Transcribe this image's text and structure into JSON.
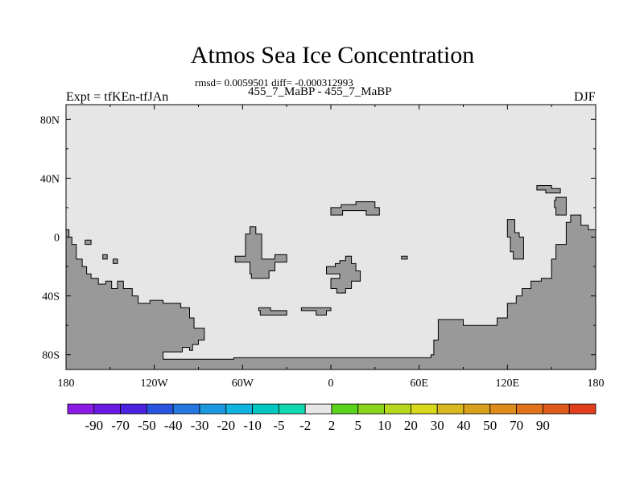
{
  "title": "Atmos Sea Ice Concentration",
  "stats": "rmsd= 0.0059501 diff= -0.000312993",
  "subtitle": "455_7_MaBP - 455_7_MaBP",
  "left_label": "Expt = tfKEn-tfJAn",
  "right_label": "DJF",
  "colors": {
    "ocean": "#e6e6e6",
    "land": "#999999"
  },
  "map": {
    "x_ticks": [
      {
        "lon": -180,
        "label": "180"
      },
      {
        "lon": -120,
        "label": "120W"
      },
      {
        "lon": -60,
        "label": "60W"
      },
      {
        "lon": 0,
        "label": "0"
      },
      {
        "lon": 60,
        "label": "60E"
      },
      {
        "lon": 120,
        "label": "120E"
      },
      {
        "lon": 180,
        "label": "180"
      }
    ],
    "y_ticks": [
      {
        "lat": 80,
        "label": "80N"
      },
      {
        "lat": 40,
        "label": "40N"
      },
      {
        "lat": 0,
        "label": "0"
      },
      {
        "lat": -40,
        "label": "40S"
      },
      {
        "lat": -80,
        "label": "80S"
      }
    ],
    "lon_range": [
      -180,
      180
    ],
    "lat_range": [
      -90,
      90
    ],
    "land_regions": [
      {
        "name": "west-land-mass",
        "points": [
          [
            -180,
            -90
          ],
          [
            -180,
            5
          ],
          [
            -178,
            5
          ],
          [
            -178,
            0
          ],
          [
            -176,
            0
          ],
          [
            -176,
            -5
          ],
          [
            -173,
            -5
          ],
          [
            -173,
            -15
          ],
          [
            -169,
            -15
          ],
          [
            -169,
            -20
          ],
          [
            -166,
            -20
          ],
          [
            -166,
            -25
          ],
          [
            -163,
            -25
          ],
          [
            -163,
            -28
          ],
          [
            -158,
            -28
          ],
          [
            -158,
            -32
          ],
          [
            -153,
            -32
          ],
          [
            -153,
            -30
          ],
          [
            -149,
            -30
          ],
          [
            -149,
            -35
          ],
          [
            -145,
            -35
          ],
          [
            -145,
            -30
          ],
          [
            -141,
            -30
          ],
          [
            -141,
            -35
          ],
          [
            -135,
            -35
          ],
          [
            -135,
            -40
          ],
          [
            -131,
            -40
          ],
          [
            -131,
            -45
          ],
          [
            -123,
            -45
          ],
          [
            -123,
            -43
          ],
          [
            -114,
            -43
          ],
          [
            -114,
            -45
          ],
          [
            -102,
            -45
          ],
          [
            -102,
            -48
          ],
          [
            -96,
            -48
          ],
          [
            -96,
            -55
          ],
          [
            -93,
            -55
          ],
          [
            -93,
            -62
          ],
          [
            -86,
            -62
          ],
          [
            -86,
            -70
          ],
          [
            -90,
            -70
          ],
          [
            -90,
            -73
          ],
          [
            -94,
            -73
          ],
          [
            -94,
            -77
          ],
          [
            -96,
            -77
          ],
          [
            -96,
            -75
          ],
          [
            -101,
            -75
          ],
          [
            -101,
            -78
          ],
          [
            -114,
            -78
          ],
          [
            -114,
            -83
          ],
          [
            -66,
            -83
          ],
          [
            -66,
            -82
          ],
          [
            68,
            -82
          ],
          [
            68,
            -80
          ],
          [
            70,
            -80
          ],
          [
            70,
            -70
          ],
          [
            73,
            -70
          ],
          [
            73,
            -56
          ],
          [
            90,
            -56
          ],
          [
            90,
            -60
          ],
          [
            113,
            -60
          ],
          [
            113,
            -55
          ],
          [
            120,
            -55
          ],
          [
            120,
            -45
          ],
          [
            126,
            -45
          ],
          [
            126,
            -40
          ],
          [
            130,
            -40
          ],
          [
            130,
            -35
          ],
          [
            136,
            -35
          ],
          [
            136,
            -30
          ],
          [
            143,
            -30
          ],
          [
            143,
            -28
          ],
          [
            150,
            -28
          ],
          [
            150,
            -15
          ],
          [
            153,
            -15
          ],
          [
            153,
            -5
          ],
          [
            160,
            -5
          ],
          [
            160,
            10
          ],
          [
            163,
            10
          ],
          [
            163,
            15
          ],
          [
            170,
            15
          ],
          [
            170,
            8
          ],
          [
            175,
            8
          ],
          [
            175,
            5
          ],
          [
            180,
            5
          ],
          [
            180,
            -90
          ]
        ]
      },
      {
        "name": "island-1",
        "points": [
          [
            -167,
            -2
          ],
          [
            -163,
            -2
          ],
          [
            -163,
            -5
          ],
          [
            -167,
            -5
          ]
        ]
      },
      {
        "name": "island-2",
        "points": [
          [
            -155,
            -12
          ],
          [
            -152,
            -12
          ],
          [
            -152,
            -15
          ],
          [
            -155,
            -15
          ]
        ]
      },
      {
        "name": "island-3",
        "points": [
          [
            -148,
            -15
          ],
          [
            -145,
            -15
          ],
          [
            -145,
            -18
          ],
          [
            -148,
            -18
          ]
        ]
      },
      {
        "name": "central-landmass-a",
        "points": [
          [
            -58,
            2
          ],
          [
            -55,
            2
          ],
          [
            -55,
            7
          ],
          [
            -51,
            7
          ],
          [
            -51,
            2
          ],
          [
            -47,
            2
          ],
          [
            -47,
            -15
          ],
          [
            -38,
            -15
          ],
          [
            -38,
            -12
          ],
          [
            -30,
            -12
          ],
          [
            -30,
            -17
          ],
          [
            -38,
            -17
          ],
          [
            -38,
            -23
          ],
          [
            -42,
            -23
          ],
          [
            -42,
            -28
          ],
          [
            -54,
            -28
          ],
          [
            -54,
            -25
          ],
          [
            -55,
            -25
          ],
          [
            -55,
            -17
          ],
          [
            -65,
            -17
          ],
          [
            -65,
            -13
          ],
          [
            -58,
            -13
          ]
        ]
      },
      {
        "name": "central-landmass-b",
        "points": [
          [
            6,
            -16
          ],
          [
            10,
            -16
          ],
          [
            10,
            -13
          ],
          [
            14,
            -13
          ],
          [
            14,
            -18
          ],
          [
            17,
            -18
          ],
          [
            17,
            -23
          ],
          [
            20,
            -23
          ],
          [
            20,
            -30
          ],
          [
            14,
            -30
          ],
          [
            14,
            -35
          ],
          [
            10,
            -35
          ],
          [
            10,
            -38
          ],
          [
            4,
            -38
          ],
          [
            4,
            -35
          ],
          [
            0,
            -35
          ],
          [
            0,
            -28
          ],
          [
            6,
            -28
          ],
          [
            6,
            -25
          ],
          [
            -3,
            -25
          ],
          [
            -3,
            -20
          ],
          [
            3,
            -20
          ],
          [
            3,
            -18
          ],
          [
            6,
            -18
          ]
        ]
      },
      {
        "name": "north-central-landmass",
        "points": [
          [
            0,
            15
          ],
          [
            0,
            20
          ],
          [
            7,
            20
          ],
          [
            7,
            22
          ],
          [
            17,
            22
          ],
          [
            17,
            24
          ],
          [
            30,
            24
          ],
          [
            30,
            20
          ],
          [
            33,
            20
          ],
          [
            33,
            15
          ],
          [
            24,
            15
          ],
          [
            24,
            18
          ],
          [
            8,
            18
          ],
          [
            8,
            15
          ]
        ]
      },
      {
        "name": "east-upper-island-a",
        "points": [
          [
            120,
            12
          ],
          [
            125,
            12
          ],
          [
            125,
            3
          ],
          [
            128,
            3
          ],
          [
            128,
            0
          ],
          [
            131,
            0
          ],
          [
            131,
            -15
          ],
          [
            124,
            -15
          ],
          [
            124,
            -10
          ],
          [
            122,
            -10
          ],
          [
            122,
            0
          ],
          [
            120,
            0
          ]
        ]
      },
      {
        "name": "east-upper-island-b",
        "points": [
          [
            140,
            35
          ],
          [
            150,
            35
          ],
          [
            150,
            33
          ],
          [
            156,
            33
          ],
          [
            156,
            30
          ],
          [
            146,
            30
          ],
          [
            146,
            32
          ],
          [
            140,
            32
          ]
        ]
      },
      {
        "name": "east-upper-island-c",
        "points": [
          [
            153,
            27
          ],
          [
            160,
            27
          ],
          [
            160,
            15
          ],
          [
            153,
            15
          ],
          [
            153,
            20
          ],
          [
            152,
            20
          ],
          [
            152,
            25
          ],
          [
            153,
            25
          ]
        ]
      },
      {
        "name": "small-island-east",
        "points": [
          [
            48,
            -13
          ],
          [
            52,
            -13
          ],
          [
            52,
            -15
          ],
          [
            48,
            -15
          ]
        ]
      },
      {
        "name": "southern-island-1",
        "points": [
          [
            -49,
            -48
          ],
          [
            -41,
            -48
          ],
          [
            -41,
            -50
          ],
          [
            -30,
            -50
          ],
          [
            -30,
            -53
          ],
          [
            -48,
            -53
          ],
          [
            -48,
            -50
          ],
          [
            -49,
            -50
          ]
        ]
      },
      {
        "name": "southern-island-2",
        "points": [
          [
            -20,
            -48
          ],
          [
            0,
            -48
          ],
          [
            0,
            -50
          ],
          [
            -3,
            -50
          ],
          [
            -3,
            -53
          ],
          [
            -10,
            -53
          ],
          [
            -10,
            -50
          ],
          [
            -20,
            -50
          ]
        ]
      }
    ]
  },
  "colorbar": {
    "colors": [
      "#8c1ae6",
      "#6b1ae6",
      "#4b22e0",
      "#2855e0",
      "#2478e0",
      "#1a99e0",
      "#10b4e0",
      "#00c8c0",
      "#10d8b0",
      "#e6e6e6",
      "#5bd31c",
      "#8cd31c",
      "#b6d81c",
      "#d8d81c",
      "#d8b81c",
      "#d8a01c",
      "#e08c1c",
      "#e0721c",
      "#e05a1c",
      "#e03e1c"
    ],
    "labels": [
      "-90",
      "-70",
      "-50",
      "-40",
      "-30",
      "-20",
      "-10",
      "-5",
      "-2",
      "2",
      "5",
      "10",
      "20",
      "30",
      "40",
      "50",
      "70",
      "90"
    ]
  }
}
